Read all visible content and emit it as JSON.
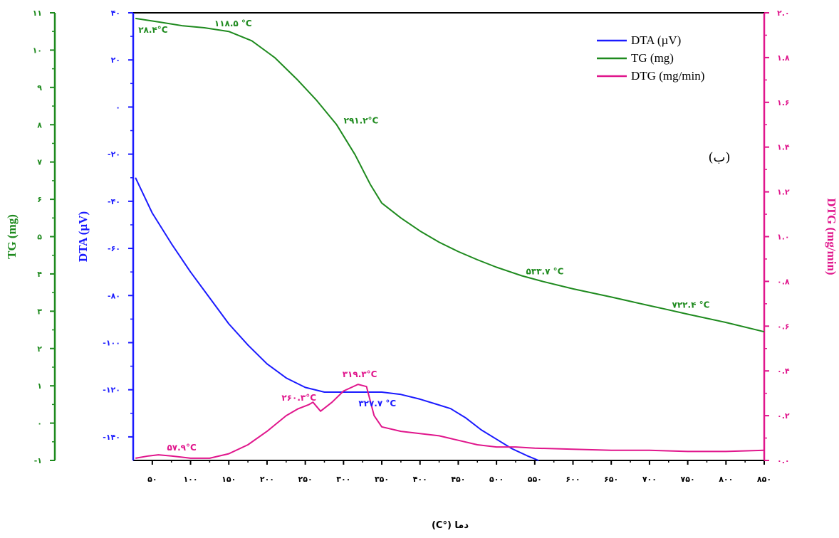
{
  "chart_data": {
    "type": "line",
    "panel_label": "(ب)",
    "xlabel": "دما (°C)",
    "xlim": [
      25,
      850
    ],
    "x_ticks": [
      50,
      100,
      150,
      200,
      250,
      300,
      350,
      400,
      450,
      500,
      550,
      600,
      650,
      700,
      750,
      800,
      850
    ],
    "x_tick_labels": [
      "۵۰",
      "۱۰۰",
      "۱۵۰",
      "۲۰۰",
      "۲۵۰",
      "۳۰۰",
      "۳۵۰",
      "۴۰۰",
      "۴۵۰",
      "۵۰۰",
      "۵۵۰",
      "۶۰۰",
      "۶۵۰",
      "۷۰۰",
      "۷۵۰",
      "۸۰۰",
      "۸۵۰"
    ],
    "axes": {
      "dta": {
        "label": "DTA (µV)",
        "color": "#1a1aff",
        "ylim": [
          -150,
          40
        ],
        "ticks": [
          40,
          20,
          0,
          -20,
          -40,
          -60,
          -80,
          -100,
          -120,
          -140
        ],
        "tick_labels": [
          "۴۰",
          "۲۰",
          "۰",
          "-۲۰",
          "-۴۰",
          "-۶۰",
          "-۸۰",
          "-۱۰۰",
          "-۱۲۰",
          "-۱۴۰"
        ]
      },
      "tg": {
        "label": "TG (mg)",
        "color": "#1e8a1e",
        "ylim": [
          -1,
          11
        ],
        "ticks": [
          11,
          10,
          9,
          8,
          7,
          6,
          5,
          4,
          3,
          2,
          1,
          0,
          -1
        ],
        "tick_labels": [
          "۱۱",
          "۱۰",
          "۹",
          "۸",
          "۷",
          "۶",
          "۵",
          "۴",
          "۳",
          "۲",
          "۱",
          "۰",
          "-۱"
        ]
      },
      "dtg": {
        "label": "DTG (mg/min)",
        "color": "#e0168c",
        "ylim": [
          0.0,
          2.0
        ],
        "ticks": [
          2.0,
          1.8,
          1.6,
          1.4,
          1.2,
          1.0,
          0.8,
          0.6,
          0.4,
          0.2,
          0.0
        ],
        "tick_labels": [
          "۲.۰",
          "۱.۸",
          "۱.۶",
          "۱.۴",
          "۱.۲",
          "۱.۰",
          "۰.۸",
          "۰.۶",
          "۰.۴",
          "۰.۲",
          "۰.۰"
        ]
      }
    },
    "series": [
      {
        "name": "DTA (µV)",
        "axis": "dta",
        "color": "#1a1aff",
        "x": [
          28,
          50,
          75,
          100,
          125,
          150,
          175,
          200,
          225,
          250,
          275,
          300,
          325,
          350,
          375,
          400,
          420,
          440,
          460,
          480,
          500,
          520,
          540,
          555
        ],
        "values": [
          -30,
          -45,
          -58,
          -70,
          -81,
          -92,
          -101,
          -109,
          -115,
          -119,
          -121,
          -121,
          -121,
          -121,
          -122,
          -124,
          -126,
          -128,
          -132,
          -137,
          -141,
          -145,
          -148,
          -150
        ]
      },
      {
        "name": "TG (mg)",
        "axis": "tg",
        "color": "#1e8a1e",
        "x": [
          28,
          60,
          90,
          118,
          150,
          180,
          210,
          240,
          265,
          291,
          315,
          335,
          350,
          375,
          400,
          425,
          450,
          475,
          500,
          533,
          560,
          600,
          650,
          700,
          722,
          750,
          800,
          850
        ],
        "values": [
          10.85,
          10.75,
          10.65,
          10.6,
          10.5,
          10.25,
          9.8,
          9.2,
          8.65,
          8.0,
          7.2,
          6.4,
          5.9,
          5.5,
          5.15,
          4.85,
          4.6,
          4.38,
          4.18,
          3.95,
          3.8,
          3.6,
          3.38,
          3.15,
          3.05,
          2.92,
          2.7,
          2.45
        ]
      },
      {
        "name": "DTG (mg/min)",
        "axis": "dtg",
        "color": "#e0168c",
        "x": [
          28,
          45,
          58,
          75,
          100,
          125,
          150,
          175,
          200,
          225,
          240,
          255,
          260,
          270,
          285,
          300,
          319,
          330,
          340,
          350,
          375,
          400,
          425,
          450,
          475,
          500,
          525,
          550,
          600,
          650,
          700,
          750,
          800,
          850
        ],
        "values": [
          0.01,
          0.02,
          0.025,
          0.02,
          0.01,
          0.01,
          0.03,
          0.07,
          0.13,
          0.2,
          0.23,
          0.25,
          0.26,
          0.22,
          0.26,
          0.31,
          0.34,
          0.33,
          0.2,
          0.15,
          0.13,
          0.12,
          0.11,
          0.09,
          0.07,
          0.06,
          0.06,
          0.055,
          0.05,
          0.045,
          0.045,
          0.04,
          0.04,
          0.045
        ]
      }
    ],
    "annotations": [
      {
        "text": "۲۸.۴°C",
        "series": "TG (mg)",
        "x": 28,
        "y": 10.85
      },
      {
        "text": "۱۱۸.۵ °C",
        "series": "TG (mg)",
        "x": 118,
        "y": 10.6
      },
      {
        "text": "۲۹۱.۲°C",
        "series": "TG (mg)",
        "x": 291,
        "y": 8.0
      },
      {
        "text": "۵۳۳.۷ °C",
        "series": "TG (mg)",
        "x": 533,
        "y": 3.95
      },
      {
        "text": "۷۲۲.۴ °C",
        "series": "TG (mg)",
        "x": 722,
        "y": 3.05
      },
      {
        "text": "۳۲۷.۷ °C",
        "series": "DTA (µV)",
        "x": 327,
        "y": -121
      },
      {
        "text": "۵۷.۹°C",
        "series": "DTG (mg/min)",
        "x": 58,
        "y": 0.025
      },
      {
        "text": "۲۶۰.۳°C",
        "series": "DTG (mg/min)",
        "x": 260,
        "y": 0.26
      },
      {
        "text": "۳۱۹.۳°C",
        "series": "DTG (mg/min)",
        "x": 319,
        "y": 0.34
      }
    ],
    "legend": {
      "placement": "top-right",
      "entries": [
        {
          "label": "DTA (µV)",
          "color": "#1a1aff"
        },
        {
          "label": "TG (mg)",
          "color": "#1e8a1e"
        },
        {
          "label": "DTG (mg/min)",
          "color": "#e0168c"
        }
      ]
    },
    "grid": false
  }
}
